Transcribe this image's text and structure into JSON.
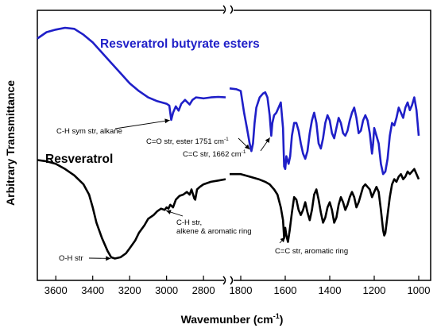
{
  "chart_data": {
    "type": "line",
    "title": "",
    "xlabel": "Wavemunber (cm",
    "xlabel_sup": "-1",
    "xlabel_tail": ")",
    "ylabel": "Arbitrary Transmittance",
    "x_reversed": true,
    "x_axis_break": true,
    "xlim": [
      3700,
      1000
    ],
    "segments": [
      {
        "from": 3700,
        "to": 2680
      },
      {
        "from": 1850,
        "to": 1000
      }
    ],
    "x_ticks": [
      "3600",
      "3400",
      "3200",
      "3000",
      "2800",
      "1800",
      "1600",
      "1400",
      "1200",
      "1000"
    ],
    "y_ticks_shown": false,
    "legend": "none",
    "grid": false,
    "series": [
      {
        "name": "Resveratrol butyrate esters",
        "color": "#1f1fc8",
        "points": [
          [
            3700,
            0.93
          ],
          [
            3650,
            0.955
          ],
          [
            3600,
            0.965
          ],
          [
            3550,
            0.972
          ],
          [
            3500,
            0.968
          ],
          [
            3450,
            0.945
          ],
          [
            3400,
            0.915
          ],
          [
            3350,
            0.875
          ],
          [
            3300,
            0.835
          ],
          [
            3250,
            0.795
          ],
          [
            3200,
            0.755
          ],
          [
            3150,
            0.725
          ],
          [
            3100,
            0.7
          ],
          [
            3050,
            0.685
          ],
          [
            3000,
            0.675
          ],
          [
            2985,
            0.668
          ],
          [
            2975,
            0.612
          ],
          [
            2965,
            0.64
          ],
          [
            2950,
            0.665
          ],
          [
            2935,
            0.648
          ],
          [
            2920,
            0.675
          ],
          [
            2900,
            0.69
          ],
          [
            2875,
            0.672
          ],
          [
            2860,
            0.69
          ],
          [
            2840,
            0.7
          ],
          [
            2800,
            0.696
          ],
          [
            2760,
            0.7
          ],
          [
            2720,
            0.702
          ],
          [
            2680,
            0.7
          ],
          [
            1850,
            0.735
          ],
          [
            1820,
            0.732
          ],
          [
            1800,
            0.725
          ],
          [
            1785,
            0.64
          ],
          [
            1772,
            0.58
          ],
          [
            1760,
            0.52
          ],
          [
            1752,
            0.49
          ],
          [
            1745,
            0.52
          ],
          [
            1738,
            0.6
          ],
          [
            1730,
            0.66
          ],
          [
            1715,
            0.7
          ],
          [
            1700,
            0.715
          ],
          [
            1690,
            0.72
          ],
          [
            1680,
            0.7
          ],
          [
            1670,
            0.63
          ],
          [
            1663,
            0.55
          ],
          [
            1658,
            0.6
          ],
          [
            1650,
            0.63
          ],
          [
            1640,
            0.64
          ],
          [
            1630,
            0.66
          ],
          [
            1620,
            0.68
          ],
          [
            1610,
            0.58
          ],
          [
            1605,
            0.43
          ],
          [
            1600,
            0.42
          ],
          [
            1595,
            0.47
          ],
          [
            1585,
            0.44
          ],
          [
            1578,
            0.47
          ],
          [
            1570,
            0.55
          ],
          [
            1560,
            0.6
          ],
          [
            1550,
            0.6
          ],
          [
            1540,
            0.57
          ],
          [
            1530,
            0.52
          ],
          [
            1520,
            0.48
          ],
          [
            1510,
            0.46
          ],
          [
            1500,
            0.49
          ],
          [
            1490,
            0.56
          ],
          [
            1480,
            0.61
          ],
          [
            1470,
            0.64
          ],
          [
            1460,
            0.6
          ],
          [
            1450,
            0.52
          ],
          [
            1440,
            0.5
          ],
          [
            1430,
            0.54
          ],
          [
            1420,
            0.6
          ],
          [
            1410,
            0.63
          ],
          [
            1400,
            0.61
          ],
          [
            1390,
            0.56
          ],
          [
            1380,
            0.54
          ],
          [
            1370,
            0.58
          ],
          [
            1360,
            0.62
          ],
          [
            1350,
            0.6
          ],
          [
            1340,
            0.56
          ],
          [
            1330,
            0.55
          ],
          [
            1320,
            0.57
          ],
          [
            1310,
            0.61
          ],
          [
            1300,
            0.64
          ],
          [
            1290,
            0.66
          ],
          [
            1280,
            0.62
          ],
          [
            1270,
            0.56
          ],
          [
            1260,
            0.57
          ],
          [
            1250,
            0.61
          ],
          [
            1240,
            0.63
          ],
          [
            1230,
            0.61
          ],
          [
            1220,
            0.56
          ],
          [
            1210,
            0.48
          ],
          [
            1205,
            0.52
          ],
          [
            1200,
            0.58
          ],
          [
            1190,
            0.55
          ],
          [
            1180,
            0.52
          ],
          [
            1170,
            0.44
          ],
          [
            1160,
            0.4
          ],
          [
            1150,
            0.41
          ],
          [
            1140,
            0.46
          ],
          [
            1130,
            0.55
          ],
          [
            1120,
            0.6
          ],
          [
            1110,
            0.59
          ],
          [
            1100,
            0.62
          ],
          [
            1090,
            0.66
          ],
          [
            1080,
            0.64
          ],
          [
            1070,
            0.62
          ],
          [
            1060,
            0.66
          ],
          [
            1050,
            0.68
          ],
          [
            1040,
            0.65
          ],
          [
            1030,
            0.67
          ],
          [
            1020,
            0.7
          ],
          [
            1010,
            0.65
          ],
          [
            1000,
            0.55
          ]
        ]
      },
      {
        "name": "Resveratrol",
        "color": "#000000",
        "points": [
          [
            3700,
            0.455
          ],
          [
            3650,
            0.45
          ],
          [
            3600,
            0.44
          ],
          [
            3550,
            0.42
          ],
          [
            3500,
            0.395
          ],
          [
            3450,
            0.36
          ],
          [
            3420,
            0.32
          ],
          [
            3400,
            0.27
          ],
          [
            3380,
            0.21
          ],
          [
            3350,
            0.15
          ],
          [
            3320,
            0.1
          ],
          [
            3300,
            0.075
          ],
          [
            3280,
            0.07
          ],
          [
            3250,
            0.075
          ],
          [
            3220,
            0.09
          ],
          [
            3200,
            0.11
          ],
          [
            3170,
            0.14
          ],
          [
            3150,
            0.17
          ],
          [
            3120,
            0.2
          ],
          [
            3100,
            0.225
          ],
          [
            3070,
            0.24
          ],
          [
            3050,
            0.255
          ],
          [
            3030,
            0.265
          ],
          [
            3010,
            0.26
          ],
          [
            3000,
            0.27
          ],
          [
            2990,
            0.265
          ],
          [
            2980,
            0.28
          ],
          [
            2965,
            0.27
          ],
          [
            2950,
            0.3
          ],
          [
            2930,
            0.315
          ],
          [
            2910,
            0.32
          ],
          [
            2890,
            0.33
          ],
          [
            2875,
            0.32
          ],
          [
            2865,
            0.34
          ],
          [
            2850,
            0.305
          ],
          [
            2845,
            0.3
          ],
          [
            2835,
            0.34
          ],
          [
            2820,
            0.35
          ],
          [
            2800,
            0.36
          ],
          [
            2760,
            0.37
          ],
          [
            2720,
            0.375
          ],
          [
            2680,
            0.38
          ],
          [
            1850,
            0.4
          ],
          [
            1800,
            0.4
          ],
          [
            1760,
            0.39
          ],
          [
            1720,
            0.38
          ],
          [
            1690,
            0.37
          ],
          [
            1670,
            0.36
          ],
          [
            1650,
            0.34
          ],
          [
            1635,
            0.32
          ],
          [
            1620,
            0.27
          ],
          [
            1610,
            0.22
          ],
          [
            1605,
            0.15
          ],
          [
            1600,
            0.19
          ],
          [
            1595,
            0.16
          ],
          [
            1588,
            0.135
          ],
          [
            1580,
            0.18
          ],
          [
            1570,
            0.25
          ],
          [
            1560,
            0.31
          ],
          [
            1550,
            0.3
          ],
          [
            1540,
            0.26
          ],
          [
            1530,
            0.24
          ],
          [
            1520,
            0.26
          ],
          [
            1510,
            0.29
          ],
          [
            1500,
            0.25
          ],
          [
            1490,
            0.22
          ],
          [
            1480,
            0.26
          ],
          [
            1470,
            0.32
          ],
          [
            1460,
            0.34
          ],
          [
            1450,
            0.3
          ],
          [
            1440,
            0.25
          ],
          [
            1430,
            0.21
          ],
          [
            1420,
            0.23
          ],
          [
            1410,
            0.27
          ],
          [
            1400,
            0.29
          ],
          [
            1390,
            0.26
          ],
          [
            1380,
            0.21
          ],
          [
            1370,
            0.23
          ],
          [
            1360,
            0.28
          ],
          [
            1350,
            0.31
          ],
          [
            1340,
            0.29
          ],
          [
            1330,
            0.26
          ],
          [
            1320,
            0.28
          ],
          [
            1310,
            0.31
          ],
          [
            1300,
            0.33
          ],
          [
            1290,
            0.31
          ],
          [
            1280,
            0.27
          ],
          [
            1270,
            0.29
          ],
          [
            1260,
            0.32
          ],
          [
            1250,
            0.35
          ],
          [
            1240,
            0.36
          ],
          [
            1230,
            0.35
          ],
          [
            1220,
            0.34
          ],
          [
            1210,
            0.31
          ],
          [
            1200,
            0.33
          ],
          [
            1190,
            0.35
          ],
          [
            1180,
            0.33
          ],
          [
            1170,
            0.26
          ],
          [
            1160,
            0.18
          ],
          [
            1155,
            0.16
          ],
          [
            1150,
            0.17
          ],
          [
            1140,
            0.24
          ],
          [
            1130,
            0.31
          ],
          [
            1120,
            0.36
          ],
          [
            1110,
            0.38
          ],
          [
            1100,
            0.37
          ],
          [
            1090,
            0.39
          ],
          [
            1080,
            0.4
          ],
          [
            1070,
            0.38
          ],
          [
            1060,
            0.39
          ],
          [
            1050,
            0.41
          ],
          [
            1040,
            0.4
          ],
          [
            1030,
            0.41
          ],
          [
            1020,
            0.42
          ],
          [
            1010,
            0.4
          ],
          [
            1000,
            0.38
          ]
        ]
      }
    ],
    "annotations": [
      {
        "id": "ch-sym",
        "text": "C-H sym str, alkane",
        "sup": "",
        "after": "",
        "arrow_to": [
          2970,
          0.612
        ]
      },
      {
        "id": "co-ester",
        "text": "C=O str, ester 1751 cm",
        "sup": "-1",
        "after": "",
        "arrow_to": [
          1752,
          0.49
        ]
      },
      {
        "id": "cc-1662",
        "text": "C=C str, 1662 cm",
        "sup": "-1",
        "after": "",
        "arrow_to": [
          1663,
          0.55
        ]
      },
      {
        "id": "ch-alkene",
        "text": "C-H str,",
        "line2": "alkene & aromatic ring",
        "arrow_to": [
          3015,
          0.26
        ]
      },
      {
        "id": "oh",
        "text": "O-H str",
        "arrow_to": [
          3290,
          0.07
        ]
      },
      {
        "id": "cc-arom",
        "text": "C=C str, aromatic ring",
        "arrow_to": [
          1593,
          0.16
        ]
      }
    ]
  }
}
